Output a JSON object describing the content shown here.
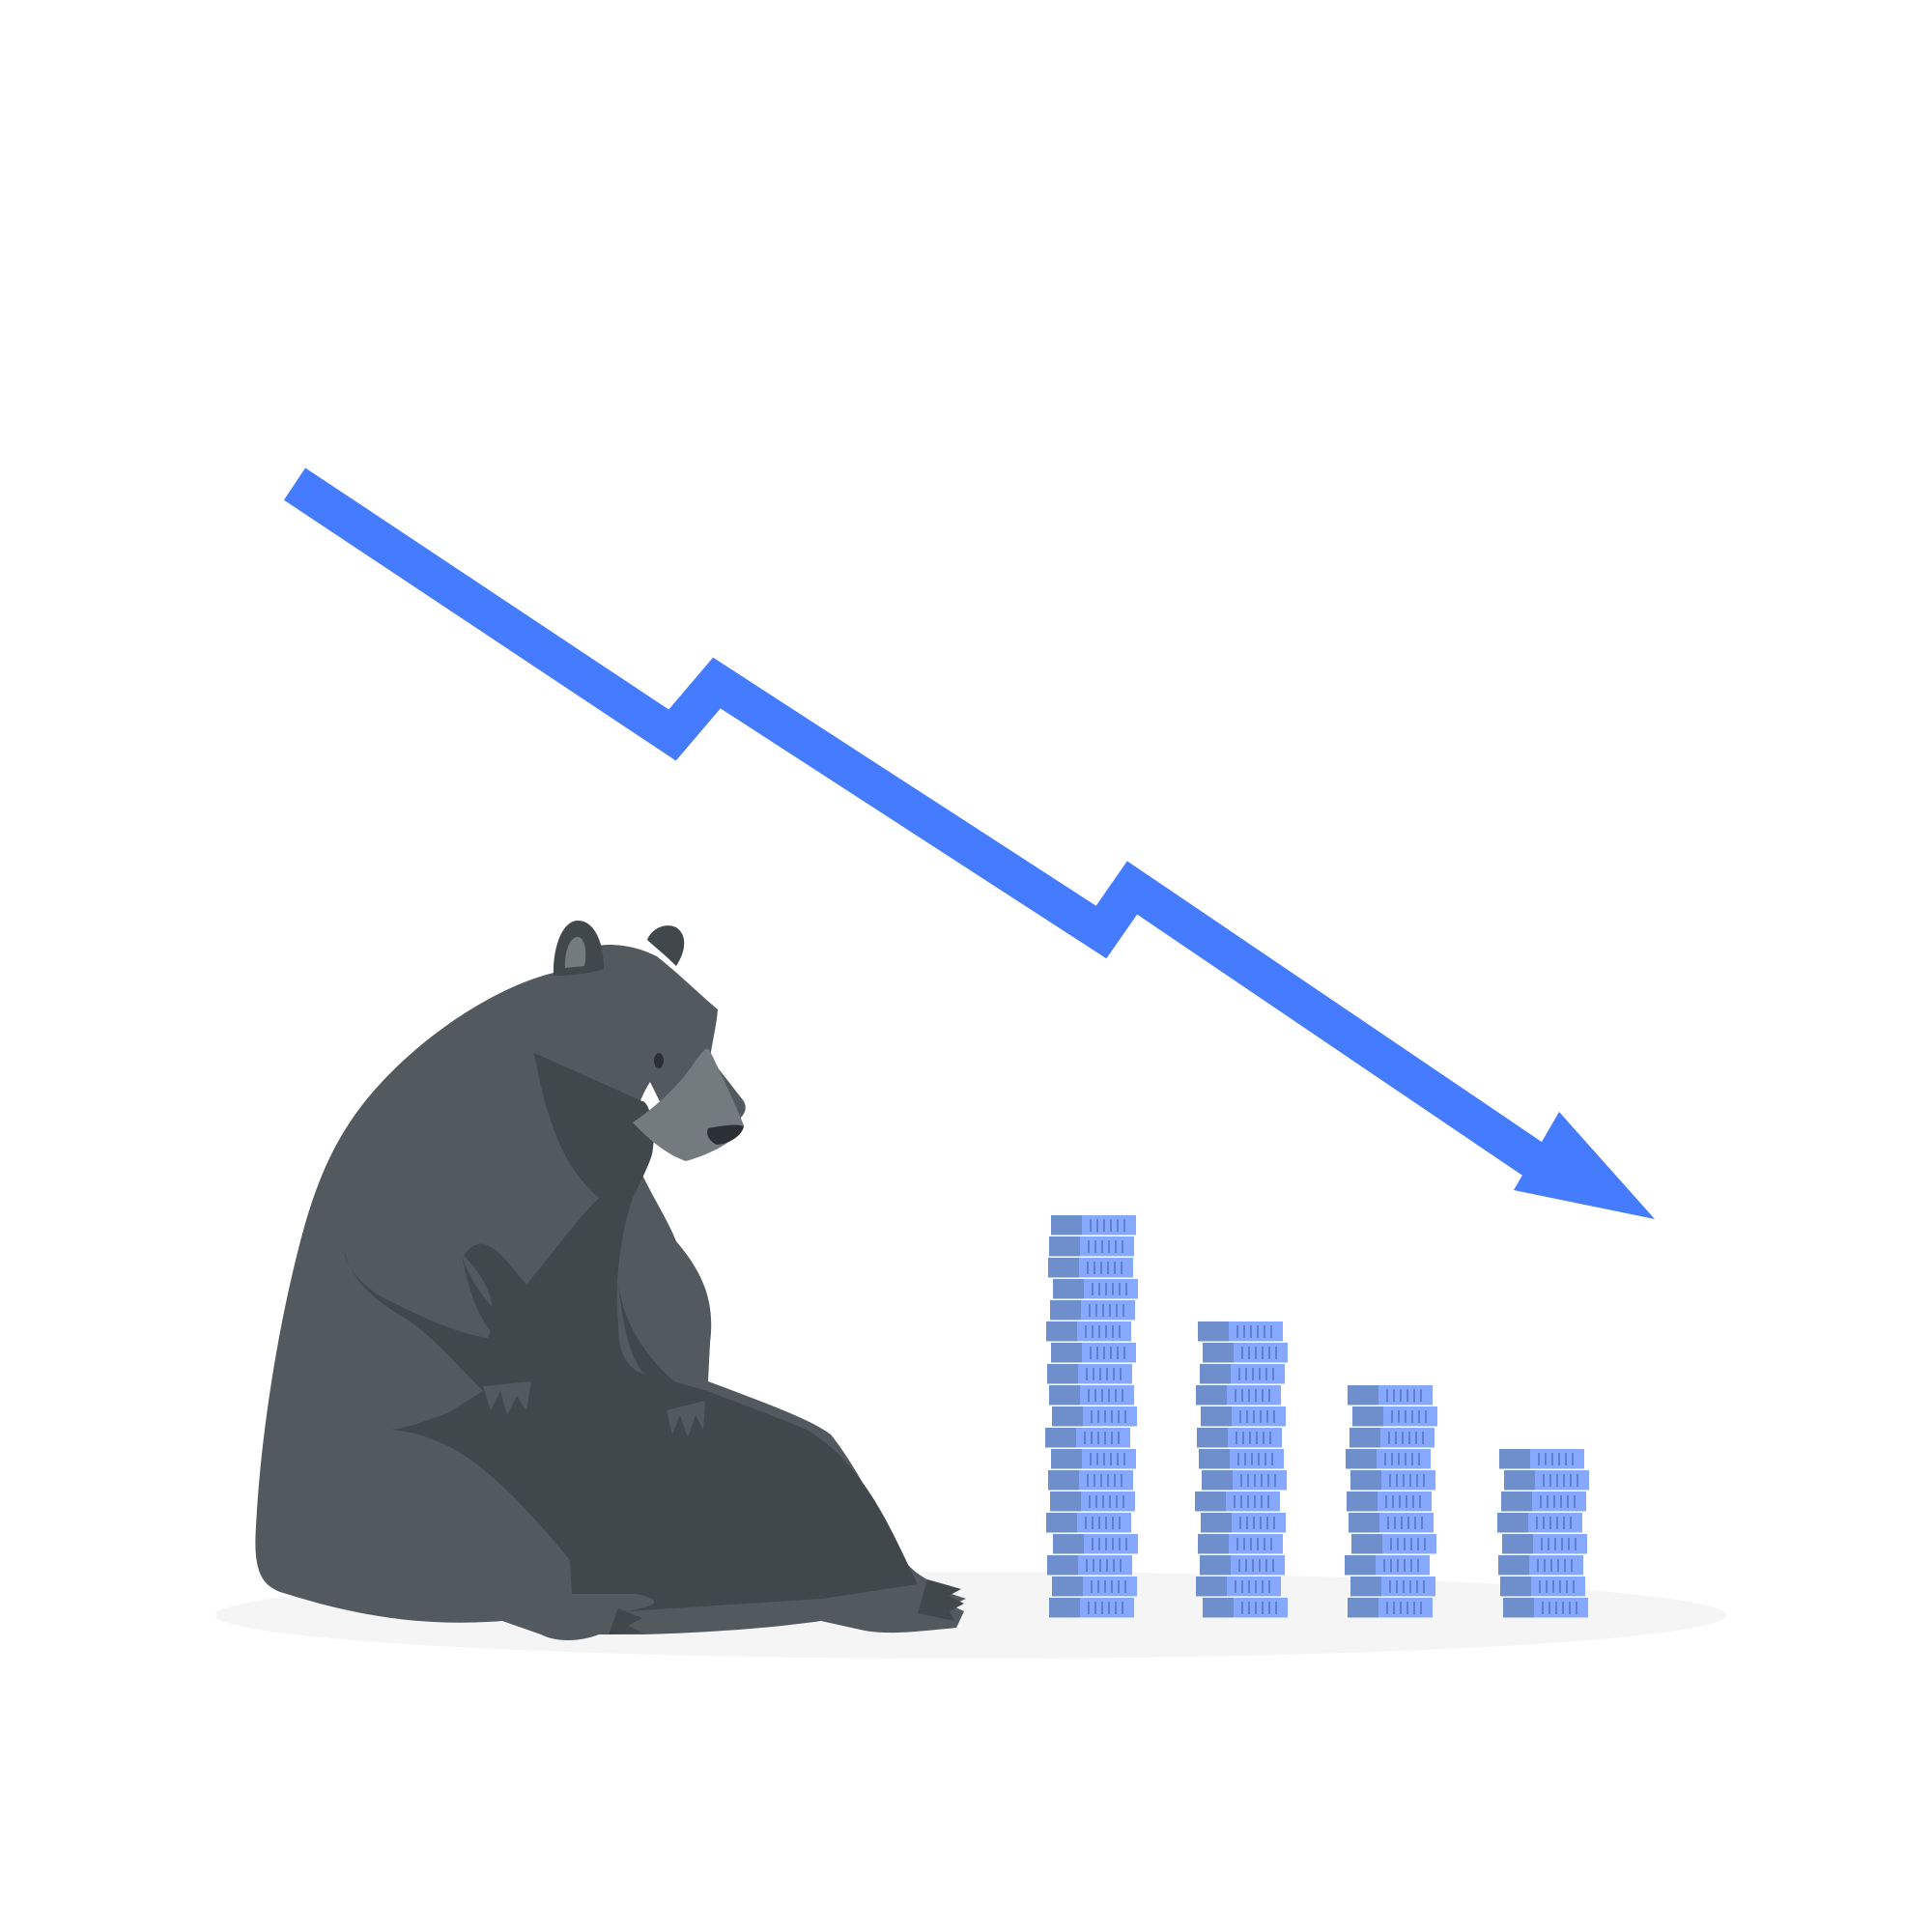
{
  "scene": {
    "subject": "bear-market",
    "colors": {
      "background": "#ffffff",
      "arrow": "#457BFF",
      "ground_shadow": "#F5F5F5",
      "bear_body": "#525A60",
      "bear_shade": "#41484B",
      "bear_muzzle": "#737B7E",
      "bear_dark": "#2A3036",
      "coin_dark": "#6F8FCC",
      "coin_light": "#86A8FF",
      "coin_mark": "#5F7FD0"
    },
    "coin_stacks": [
      {
        "name": "coin-stack-1",
        "coins": 19
      },
      {
        "name": "coin-stack-2",
        "coins": 14
      },
      {
        "name": "coin-stack-3",
        "coins": 11
      },
      {
        "name": "coin-stack-4",
        "coins": 8
      }
    ]
  }
}
